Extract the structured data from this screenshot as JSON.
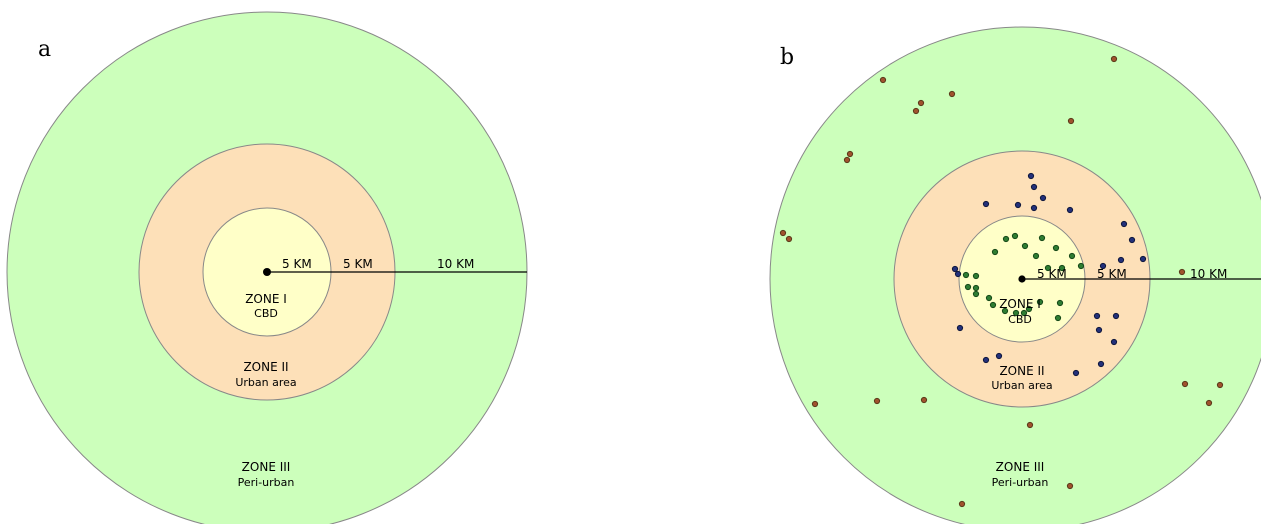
{
  "panels": [
    {
      "label": "a",
      "zones": [
        {
          "title": "ZONE III",
          "sub": "Peri-urban",
          "color": "#ccffbb"
        },
        {
          "title": "ZONE II",
          "sub": "Urban area",
          "color": "#fde0b8"
        },
        {
          "title": "ZONE I",
          "sub": "CBD",
          "color": "#ffffc8"
        }
      ],
      "km_labels": [
        "5 KM",
        "5 KM",
        "10 KM"
      ]
    },
    {
      "label": "b",
      "zones": [
        {
          "title": "ZONE III",
          "sub": "Peri-urban",
          "color": "#ccffbb"
        },
        {
          "title": "ZONE II",
          "sub": "Urban area",
          "color": "#fde0b8"
        },
        {
          "title": "ZONE I",
          "sub": "CBD",
          "color": "#ffffc8"
        }
      ],
      "km_labels": [
        "5 KM",
        "5 KM",
        "10 KM"
      ]
    }
  ],
  "colors": {
    "zone1_points": "#2e7d32",
    "zone2_points": "#23307a",
    "zone3_points": "#a0522d",
    "outline": "#888888"
  }
}
